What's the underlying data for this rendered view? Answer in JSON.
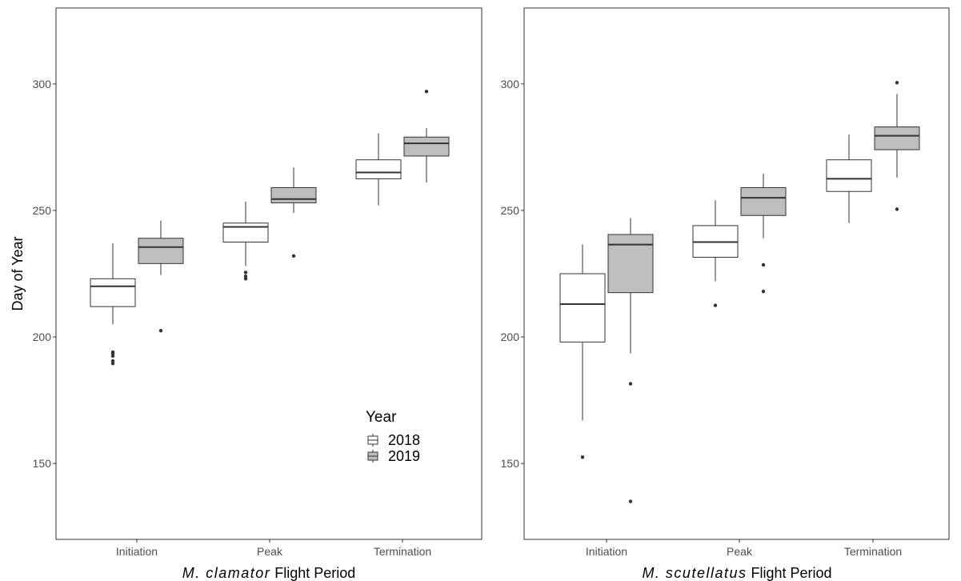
{
  "colors": {
    "fill_2018": "#ffffff",
    "fill_2019": "#bebebe",
    "outline": "#333333",
    "outlier": "#333333",
    "panel_border": "#333333"
  },
  "shared_y_label": "Day of Year",
  "legend": {
    "title": "Year",
    "entries": [
      "2018",
      "2019"
    ]
  },
  "chart_data": [
    {
      "type": "box",
      "xlabel_italic": "M. clamator",
      "xlabel_rest": " Flight Period",
      "categories": [
        "Initiation",
        "Peak",
        "Termination"
      ],
      "yticks": [
        150,
        200,
        250,
        300
      ],
      "ylim": [
        120,
        330
      ],
      "legend_position": "inside-bottom-right",
      "series": [
        {
          "name": "2018",
          "boxes": [
            {
              "whisker_low": 205,
              "q1": 212,
              "median": 220,
              "q3": 223,
              "whisker_high": 237,
              "outliers": [
                194,
                193.5,
                192.5,
                190.5,
                189.5
              ]
            },
            {
              "whisker_low": 228,
              "q1": 237.5,
              "median": 243.5,
              "q3": 245,
              "whisker_high": 253.5,
              "outliers": [
                225.5,
                224,
                223
              ]
            },
            {
              "whisker_low": 252,
              "q1": 262.5,
              "median": 265,
              "q3": 270,
              "whisker_high": 280.5,
              "outliers": []
            }
          ]
        },
        {
          "name": "2019",
          "boxes": [
            {
              "whisker_low": 224.5,
              "q1": 229,
              "median": 235.5,
              "q3": 239,
              "whisker_high": 246,
              "outliers": [
                202.5
              ]
            },
            {
              "whisker_low": 249,
              "q1": 253,
              "median": 254.5,
              "q3": 259,
              "whisker_high": 267,
              "outliers": [
                232
              ]
            },
            {
              "whisker_low": 261,
              "q1": 271.5,
              "median": 276.5,
              "q3": 279,
              "whisker_high": 282.5,
              "outliers": [
                297
              ]
            }
          ]
        }
      ]
    },
    {
      "type": "box",
      "xlabel_italic": "M. scutellatus",
      "xlabel_rest": " Flight Period",
      "categories": [
        "Initiation",
        "Peak",
        "Termination"
      ],
      "yticks": [
        150,
        200,
        250,
        300
      ],
      "ylim": [
        120,
        330
      ],
      "series": [
        {
          "name": "2018",
          "boxes": [
            {
              "whisker_low": 167,
              "q1": 198,
              "median": 213,
              "q3": 225,
              "whisker_high": 236.5,
              "outliers": [
                152.5
              ]
            },
            {
              "whisker_low": 222,
              "q1": 231.5,
              "median": 237.5,
              "q3": 244,
              "whisker_high": 254,
              "outliers": [
                212.5
              ]
            },
            {
              "whisker_low": 245,
              "q1": 257.5,
              "median": 262.5,
              "q3": 270,
              "whisker_high": 280,
              "outliers": []
            }
          ]
        },
        {
          "name": "2019",
          "boxes": [
            {
              "whisker_low": 193.5,
              "q1": 217.5,
              "median": 236.5,
              "q3": 240.5,
              "whisker_high": 247,
              "outliers": [
                181.5,
                135
              ]
            },
            {
              "whisker_low": 239,
              "q1": 248,
              "median": 255,
              "q3": 259,
              "whisker_high": 264.5,
              "outliers": [
                228.5,
                218
              ]
            },
            {
              "whisker_low": 263,
              "q1": 274,
              "median": 279.5,
              "q3": 283,
              "whisker_high": 296,
              "outliers": [
                300.5,
                250.5
              ]
            }
          ]
        }
      ]
    }
  ]
}
